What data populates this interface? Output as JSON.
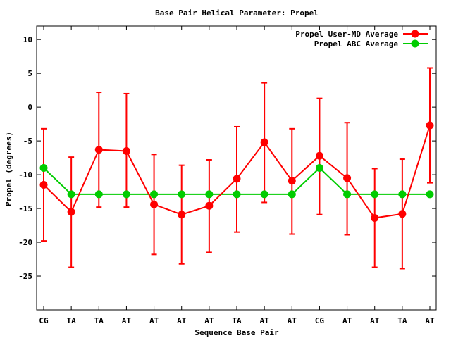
{
  "chart_data": {
    "type": "line",
    "title": "Base Pair Helical Parameter: Propel",
    "xlabel": "Sequence Base Pair",
    "ylabel": "Propel (degrees)",
    "categories": [
      "CG",
      "TA",
      "TA",
      "AT",
      "AT",
      "AT",
      "AT",
      "TA",
      "AT",
      "AT",
      "CG",
      "AT",
      "AT",
      "TA",
      "AT"
    ],
    "ylim": [
      -30,
      12
    ],
    "yticks": [
      10,
      5,
      0,
      -5,
      -10,
      -15,
      -20,
      -25
    ],
    "grid": false,
    "legend_position": "top-right",
    "series": [
      {
        "name": "Propel User-MD Average",
        "color": "#ff0000",
        "values": [
          -11.5,
          -15.5,
          -6.3,
          -6.5,
          -14.4,
          -15.9,
          -14.6,
          -10.6,
          -5.2,
          -10.9,
          -7.2,
          -10.5,
          -16.4,
          -15.8,
          -2.7
        ],
        "err_low": [
          -19.8,
          -23.7,
          -14.8,
          -14.8,
          -21.8,
          -23.2,
          -21.5,
          -18.5,
          -14.1,
          -18.8,
          -15.9,
          -18.9,
          -23.7,
          -23.9,
          -11.2
        ],
        "err_high": [
          -3.2,
          -7.4,
          2.2,
          2.0,
          -7.0,
          -8.6,
          -7.8,
          -2.9,
          3.6,
          -3.2,
          1.3,
          -2.3,
          -9.1,
          -7.7,
          5.8
        ]
      },
      {
        "name": "Propel ABC Average",
        "color": "#00cc00",
        "values": [
          -9.0,
          -12.9,
          -12.9,
          -12.9,
          -12.9,
          -12.9,
          -12.9,
          -12.9,
          -12.9,
          -12.9,
          -9.0,
          -12.9,
          -12.9,
          -12.9,
          -12.9
        ]
      }
    ]
  }
}
